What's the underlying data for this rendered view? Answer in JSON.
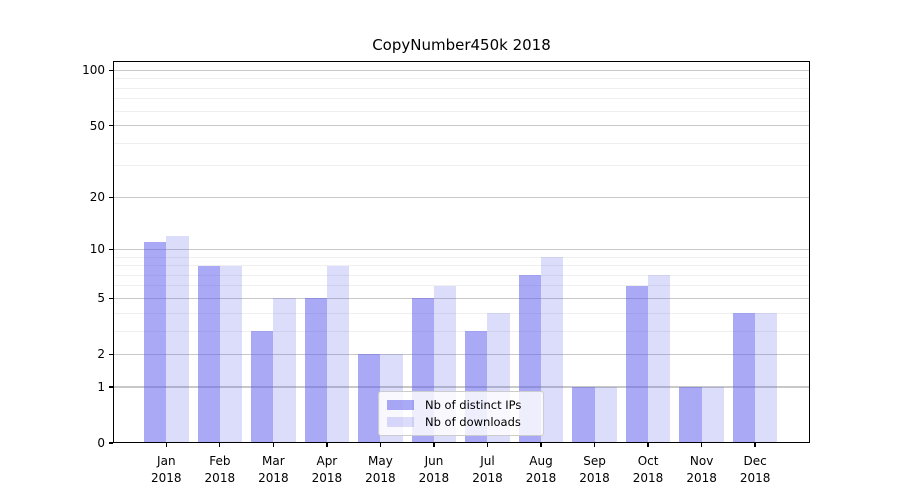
{
  "title": "CopyNumber450k 2018",
  "chart_data": {
    "type": "bar",
    "title": "CopyNumber450k 2018",
    "categories": [
      "Jan",
      "Feb",
      "Mar",
      "Apr",
      "May",
      "Jun",
      "Jul",
      "Aug",
      "Sep",
      "Oct",
      "Nov",
      "Dec"
    ],
    "category_year": "2018",
    "series": [
      {
        "name": "Nb of distinct IPs",
        "values": [
          11,
          8,
          3,
          5,
          2,
          5,
          3,
          7,
          1,
          6,
          1,
          4
        ],
        "color": "rgba(90,90,235,0.52)"
      },
      {
        "name": "Nb of downloads",
        "values": [
          12,
          8,
          5,
          8,
          2,
          6,
          4,
          9,
          1,
          7,
          1,
          4
        ],
        "color": "rgba(90,90,235,0.21)"
      }
    ],
    "xlabel": "",
    "ylabel": "",
    "y_scale": "log1p",
    "ylim": [
      0,
      112.5
    ],
    "y_ticks_labeled": [
      0,
      1,
      2,
      5,
      10,
      20,
      50,
      100
    ],
    "y_minor_gridlines": [
      3,
      4,
      6,
      7,
      8,
      9,
      30,
      40,
      60,
      70,
      80,
      90
    ],
    "grid": true,
    "legend_position": "lower center inside"
  },
  "legend": {
    "entries": [
      {
        "label": "Nb of distinct IPs"
      },
      {
        "label": "Nb of downloads"
      }
    ]
  },
  "colors": {
    "bar_dark": "rgba(90,90,235,0.52)",
    "bar_light": "rgba(90,90,235,0.21)",
    "major_grid": "#c8c8c8",
    "minor_grid": "#efefef",
    "spine": "#000000",
    "legend_bg": "rgba(255,255,255,0.8)",
    "legend_border": "#cccccc",
    "text": "#000000"
  }
}
